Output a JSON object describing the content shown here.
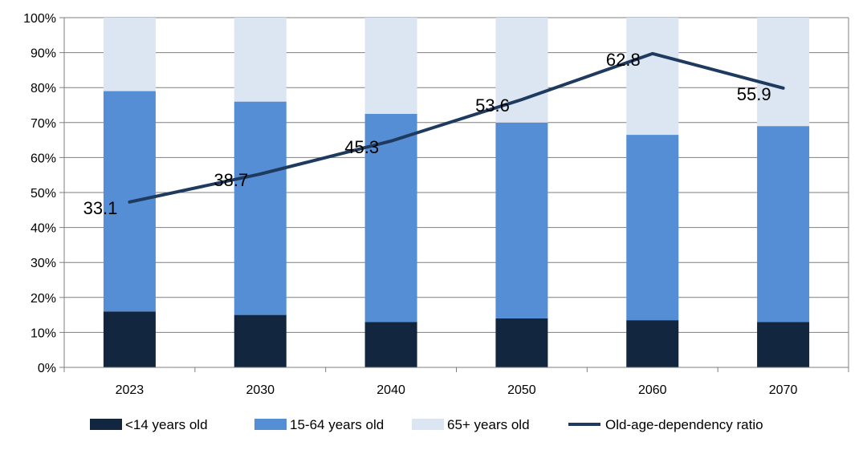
{
  "chart_data": {
    "type": "bar",
    "stacked": true,
    "percent_stacked": true,
    "categories": [
      "2023",
      "2030",
      "2040",
      "2050",
      "2060",
      "2070"
    ],
    "series": [
      {
        "name": "<14 years old",
        "values": [
          16,
          15,
          13,
          14,
          13.5,
          13
        ],
        "color": "#12263f"
      },
      {
        "name": "15-64 years old",
        "values": [
          63,
          61,
          59.5,
          56,
          53,
          56
        ],
        "color": "#558ed5"
      },
      {
        "name": "65+ years old",
        "values": [
          21,
          24,
          27.5,
          30,
          33.5,
          31
        ],
        "color": "#dce6f2"
      }
    ],
    "line_series": {
      "name": "Old-age-dependency ratio",
      "values": [
        33.1,
        38.7,
        45.3,
        53.6,
        62.8,
        55.9
      ],
      "labels": [
        "33.1",
        "38.7",
        "45.3",
        "53.6",
        "62.8",
        "55.9"
      ],
      "color": "#1f3a5f",
      "secondary_axis": true,
      "hidden_axis_range": [
        0,
        70
      ]
    },
    "y_ticks": [
      "0%",
      "10%",
      "20%",
      "30%",
      "40%",
      "50%",
      "60%",
      "70%",
      "80%",
      "90%",
      "100%"
    ],
    "ylim": [
      0,
      100
    ],
    "grid": true,
    "legend_position": "bottom"
  }
}
